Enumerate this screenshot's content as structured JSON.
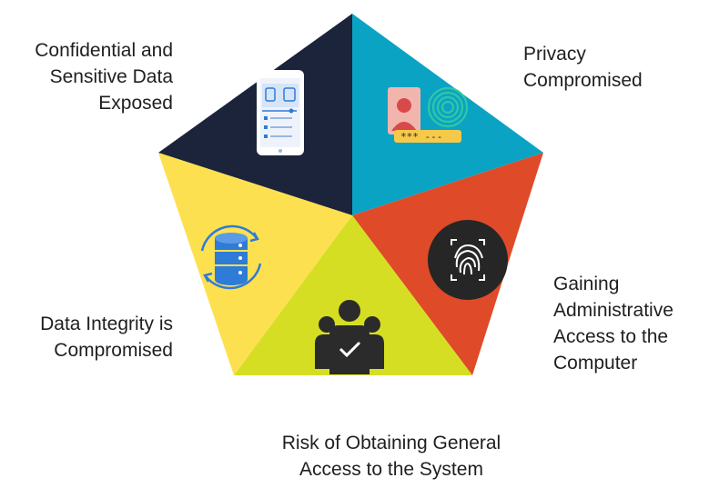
{
  "colors": {
    "confidential": "#1b243b",
    "privacy": "#0aa3c4",
    "admin": "#df4a28",
    "risk": "#d5de23",
    "integrity": "#fde04f",
    "icon_blue": "#2e7bd8",
    "icon_dark": "#2a2a2a"
  },
  "segments": [
    {
      "id": "confidential",
      "lines": [
        "Confidential and",
        "Sensitive Data",
        "Exposed"
      ],
      "icon": "mobile-document-icon"
    },
    {
      "id": "privacy",
      "lines": [
        "Privacy",
        "Compromised"
      ],
      "icon": "identity-fingerprint-icon"
    },
    {
      "id": "admin",
      "lines": [
        "Gaining",
        "Administrative",
        "Access to the",
        "Computer"
      ],
      "icon": "fingerprint-scan-icon"
    },
    {
      "id": "risk",
      "lines": [
        "Risk of Obtaining General",
        "Access to the System"
      ],
      "icon": "user-group-check-icon"
    },
    {
      "id": "integrity",
      "lines": [
        "Data Integrity is",
        "Compromised"
      ],
      "icon": "database-sync-icon"
    }
  ]
}
